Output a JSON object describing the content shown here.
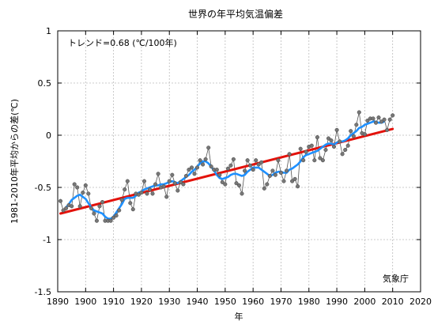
{
  "chart_data": {
    "type": "line",
    "title": "世界の年平均気温偏差",
    "xlabel": "年",
    "ylabel": "1981-2010年平均からの差(℃)",
    "xlim": [
      1890,
      2020
    ],
    "ylim": [
      -1.5,
      1
    ],
    "x_ticks": [
      "1890",
      "1900",
      "1910",
      "1920",
      "1930",
      "1940",
      "1950",
      "1960",
      "1970",
      "1980",
      "1990",
      "2000",
      "2010",
      "2020"
    ],
    "y_ticks": [
      "1",
      "0.5",
      "0",
      "-0.5",
      "-1",
      "-1.5"
    ],
    "grid": true,
    "annotation": "トレンド=0.68 (℃/100年)",
    "credit": "気象庁",
    "colors": {
      "annual": "#555555",
      "annual_point": "#777777",
      "smoothed": "#1e90ff",
      "trend": "#e3120b",
      "grid": "#bbbbbb",
      "axis": "#000000"
    },
    "x": [
      1891,
      1892,
      1893,
      1894,
      1895,
      1896,
      1897,
      1898,
      1899,
      1900,
      1901,
      1902,
      1903,
      1904,
      1905,
      1906,
      1907,
      1908,
      1909,
      1910,
      1911,
      1912,
      1913,
      1914,
      1915,
      1916,
      1917,
      1918,
      1919,
      1920,
      1921,
      1922,
      1923,
      1924,
      1925,
      1926,
      1927,
      1928,
      1929,
      1930,
      1931,
      1932,
      1933,
      1934,
      1935,
      1936,
      1937,
      1938,
      1939,
      1940,
      1941,
      1942,
      1943,
      1944,
      1945,
      1946,
      1947,
      1948,
      1949,
      1950,
      1951,
      1952,
      1953,
      1954,
      1955,
      1956,
      1957,
      1958,
      1959,
      1960,
      1961,
      1962,
      1963,
      1964,
      1965,
      1966,
      1967,
      1968,
      1969,
      1970,
      1971,
      1972,
      1973,
      1974,
      1975,
      1976,
      1977,
      1978,
      1979,
      1980,
      1981,
      1982,
      1983,
      1984,
      1985,
      1986,
      1987,
      1988,
      1989,
      1990,
      1991,
      1992,
      1993,
      1994,
      1995,
      1996,
      1997,
      1998,
      1999,
      2000,
      2001,
      2002,
      2003,
      2004,
      2005,
      2006,
      2007,
      2008,
      2009,
      2010
    ],
    "series": [
      {
        "key": "annual",
        "values": [
          -0.63,
          -0.72,
          -0.7,
          -0.67,
          -0.68,
          -0.47,
          -0.5,
          -0.68,
          -0.55,
          -0.48,
          -0.56,
          -0.7,
          -0.75,
          -0.82,
          -0.68,
          -0.64,
          -0.82,
          -0.82,
          -0.82,
          -0.79,
          -0.77,
          -0.72,
          -0.62,
          -0.52,
          -0.44,
          -0.65,
          -0.71,
          -0.56,
          -0.57,
          -0.55,
          -0.44,
          -0.56,
          -0.52,
          -0.56,
          -0.47,
          -0.37,
          -0.5,
          -0.49,
          -0.59,
          -0.44,
          -0.38,
          -0.46,
          -0.53,
          -0.45,
          -0.47,
          -0.39,
          -0.33,
          -0.31,
          -0.37,
          -0.31,
          -0.24,
          -0.28,
          -0.23,
          -0.12,
          -0.3,
          -0.33,
          -0.33,
          -0.38,
          -0.45,
          -0.47,
          -0.32,
          -0.29,
          -0.23,
          -0.46,
          -0.48,
          -0.56,
          -0.34,
          -0.24,
          -0.29,
          -0.33,
          -0.24,
          -0.28,
          -0.26,
          -0.51,
          -0.47,
          -0.39,
          -0.34,
          -0.38,
          -0.24,
          -0.36,
          -0.44,
          -0.34,
          -0.18,
          -0.44,
          -0.42,
          -0.49,
          -0.13,
          -0.24,
          -0.16,
          -0.11,
          -0.1,
          -0.24,
          -0.02,
          -0.22,
          -0.24,
          -0.14,
          -0.03,
          -0.05,
          -0.11,
          0.05,
          -0.06,
          -0.18,
          -0.14,
          -0.1,
          0.04,
          -0.01,
          0.1,
          0.22,
          0.02,
          0.01,
          0.14,
          0.16,
          0.16,
          0.12,
          0.17,
          0.13,
          0.15,
          0.05,
          0.15,
          0.19
        ]
      },
      {
        "key": "smoothed",
        "values": [
          null,
          null,
          -0.69,
          -0.66,
          -0.62,
          -0.6,
          -0.58,
          -0.57,
          -0.59,
          -0.61,
          -0.65,
          -0.69,
          -0.72,
          -0.73,
          -0.74,
          -0.75,
          -0.78,
          -0.8,
          -0.8,
          -0.78,
          -0.74,
          -0.7,
          -0.66,
          -0.61,
          -0.6,
          -0.6,
          -0.6,
          -0.58,
          -0.55,
          -0.54,
          -0.52,
          -0.51,
          -0.5,
          -0.49,
          -0.48,
          -0.48,
          -0.47,
          -0.47,
          -0.46,
          -0.45,
          -0.44,
          -0.45,
          -0.46,
          -0.44,
          -0.42,
          -0.4,
          -0.38,
          -0.35,
          -0.33,
          -0.3,
          -0.27,
          -0.25,
          -0.25,
          -0.27,
          -0.3,
          -0.34,
          -0.38,
          -0.41,
          -0.42,
          -0.41,
          -0.4,
          -0.38,
          -0.37,
          -0.37,
          -0.38,
          -0.39,
          -0.38,
          -0.35,
          -0.33,
          -0.31,
          -0.31,
          -0.31,
          -0.33,
          -0.35,
          -0.37,
          -0.39,
          -0.38,
          -0.36,
          -0.35,
          -0.35,
          -0.36,
          -0.36,
          -0.33,
          -0.32,
          -0.3,
          -0.28,
          -0.25,
          -0.21,
          -0.19,
          -0.18,
          -0.17,
          -0.16,
          -0.15,
          -0.13,
          -0.11,
          -0.09,
          -0.08,
          -0.08,
          -0.09,
          -0.07,
          -0.06,
          -0.06,
          -0.05,
          -0.03,
          0.0,
          0.02,
          0.04,
          0.07,
          0.08,
          0.1,
          0.11,
          0.12,
          0.13,
          0.13,
          0.12,
          0.12,
          0.13,
          null,
          null,
          null
        ]
      },
      {
        "key": "trend",
        "x": [
          1891,
          2010
        ],
        "values": [
          -0.75,
          0.06
        ]
      }
    ]
  }
}
